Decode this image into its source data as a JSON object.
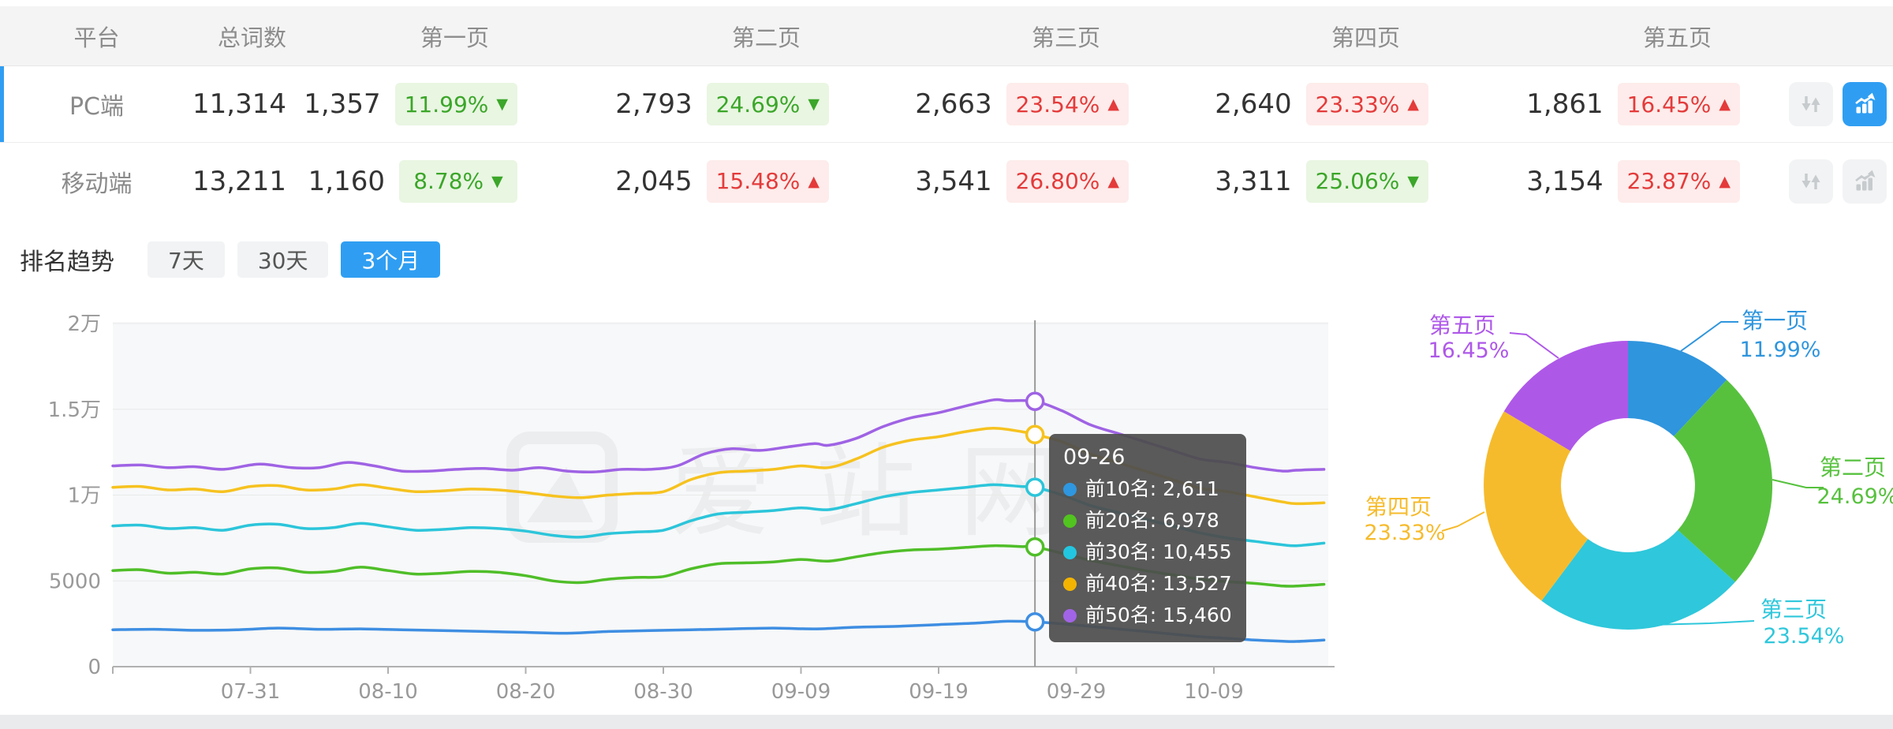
{
  "table": {
    "headers": {
      "platform": "平台",
      "total": "总词数",
      "page1": "第一页",
      "page2": "第二页",
      "page3": "第三页",
      "page4": "第四页",
      "page5": "第五页"
    },
    "rows": [
      {
        "platform": "PC端",
        "total": "11,314",
        "active": true,
        "chart_button_active": true,
        "pages": [
          {
            "count": "1,357",
            "pct": "11.99%",
            "arrow": "▼",
            "state": "down"
          },
          {
            "count": "2,793",
            "pct": "24.69%",
            "arrow": "▼",
            "state": "down"
          },
          {
            "count": "2,663",
            "pct": "23.54%",
            "arrow": "▲",
            "state": "up"
          },
          {
            "count": "2,640",
            "pct": "23.33%",
            "arrow": "▲",
            "state": "up"
          },
          {
            "count": "1,861",
            "pct": "16.45%",
            "arrow": "▲",
            "state": "up"
          }
        ]
      },
      {
        "platform": "移动端",
        "total": "13,211",
        "active": false,
        "chart_button_active": false,
        "pages": [
          {
            "count": "1,160",
            "pct": "8.78%",
            "arrow": "▼",
            "state": "down"
          },
          {
            "count": "2,045",
            "pct": "15.48%",
            "arrow": "▲",
            "state": "up"
          },
          {
            "count": "3,541",
            "pct": "26.80%",
            "arrow": "▲",
            "state": "up"
          },
          {
            "count": "3,311",
            "pct": "25.06%",
            "arrow": "▼",
            "state": "down"
          },
          {
            "count": "3,154",
            "pct": "23.87%",
            "arrow": "▲",
            "state": "up"
          }
        ]
      }
    ]
  },
  "trend": {
    "title": "排名趋势",
    "tabs": [
      {
        "label": "7天",
        "active": false
      },
      {
        "label": "30天",
        "active": false
      },
      {
        "label": "3个月",
        "active": true
      }
    ]
  },
  "watermark": "爱站网",
  "tooltip": {
    "title": "09-26",
    "items": [
      {
        "label": "前10名",
        "value": "2,611",
        "color": "#2e97e0"
      },
      {
        "label": "前20名",
        "value": "6,978",
        "color": "#52c41f"
      },
      {
        "label": "前30名",
        "value": "10,455",
        "color": "#23c6e0"
      },
      {
        "label": "前40名",
        "value": "13,527",
        "color": "#f2b400"
      },
      {
        "label": "前50名",
        "value": "15,460",
        "color": "#a164e6"
      }
    ]
  },
  "colors": {
    "accent_blue": "#2f9ef2",
    "badge_green": "#3ba629",
    "badge_red": "#e43b3b",
    "axis_text": "#999999",
    "crosshair": "#999999"
  },
  "chart_data": [
    {
      "type": "line",
      "title": "排名趋势 3个月",
      "xlabel": "",
      "ylabel": "",
      "x_ticks": [
        "07-31",
        "08-10",
        "08-20",
        "08-30",
        "09-09",
        "09-19",
        "09-29",
        "10-09"
      ],
      "x_tick_days": [
        10,
        20,
        30,
        40,
        50,
        60,
        70,
        80
      ],
      "y_ticks": [
        "0",
        "5000",
        "1万",
        "1.5万",
        "2万"
      ],
      "y_tick_values": [
        0,
        5000,
        10000,
        15000,
        20000
      ],
      "ylim": [
        0,
        20000
      ],
      "grid": true,
      "highlight": {
        "date": "09-26",
        "day": 67,
        "values": [
          2611,
          6978,
          10455,
          13527,
          15460
        ]
      },
      "series": [
        {
          "name": "前10名",
          "color": "#3e8ee2",
          "points": [
            [
              0,
              2150
            ],
            [
              3,
              2180
            ],
            [
              6,
              2120
            ],
            [
              9,
              2150
            ],
            [
              12,
              2250
            ],
            [
              15,
              2180
            ],
            [
              18,
              2200
            ],
            [
              21,
              2150
            ],
            [
              24,
              2100
            ],
            [
              27,
              2050
            ],
            [
              30,
              2000
            ],
            [
              33,
              1950
            ],
            [
              36,
              2050
            ],
            [
              39,
              2100
            ],
            [
              42,
              2150
            ],
            [
              45,
              2200
            ],
            [
              48,
              2250
            ],
            [
              51,
              2200
            ],
            [
              54,
              2300
            ],
            [
              57,
              2350
            ],
            [
              60,
              2450
            ],
            [
              63,
              2550
            ],
            [
              65,
              2650
            ],
            [
              67,
              2611
            ],
            [
              69,
              2500
            ],
            [
              71,
              2350
            ],
            [
              73,
              2200
            ],
            [
              75,
              2050
            ],
            [
              77,
              1900
            ],
            [
              79,
              1750
            ],
            [
              81,
              1650
            ],
            [
              83,
              1550
            ],
            [
              85,
              1480
            ],
            [
              86,
              1470
            ],
            [
              88,
              1550
            ]
          ]
        },
        {
          "name": "前20名",
          "color": "#4fbe28",
          "points": [
            [
              0,
              5600
            ],
            [
              2,
              5650
            ],
            [
              4,
              5450
            ],
            [
              6,
              5500
            ],
            [
              8,
              5400
            ],
            [
              10,
              5700
            ],
            [
              12,
              5750
            ],
            [
              14,
              5500
            ],
            [
              16,
              5550
            ],
            [
              18,
              5800
            ],
            [
              20,
              5600
            ],
            [
              22,
              5400
            ],
            [
              24,
              5450
            ],
            [
              26,
              5550
            ],
            [
              28,
              5500
            ],
            [
              30,
              5300
            ],
            [
              32,
              5000
            ],
            [
              34,
              4900
            ],
            [
              36,
              5100
            ],
            [
              38,
              5200
            ],
            [
              40,
              5250
            ],
            [
              42,
              5700
            ],
            [
              44,
              6000
            ],
            [
              46,
              6050
            ],
            [
              48,
              6100
            ],
            [
              50,
              6250
            ],
            [
              52,
              6150
            ],
            [
              54,
              6400
            ],
            [
              56,
              6650
            ],
            [
              58,
              6800
            ],
            [
              60,
              6850
            ],
            [
              62,
              6950
            ],
            [
              64,
              7050
            ],
            [
              66,
              7000
            ],
            [
              67,
              6978
            ],
            [
              69,
              6600
            ],
            [
              71,
              6200
            ],
            [
              73,
              5900
            ],
            [
              75,
              5600
            ],
            [
              77,
              5350
            ],
            [
              79,
              5100
            ],
            [
              81,
              4950
            ],
            [
              83,
              4850
            ],
            [
              85,
              4700
            ],
            [
              86,
              4700
            ],
            [
              88,
              4800
            ]
          ]
        },
        {
          "name": "前30名",
          "color": "#2cc5da",
          "points": [
            [
              0,
              8200
            ],
            [
              2,
              8250
            ],
            [
              4,
              8050
            ],
            [
              6,
              8100
            ],
            [
              8,
              7950
            ],
            [
              10,
              8250
            ],
            [
              12,
              8300
            ],
            [
              14,
              8050
            ],
            [
              16,
              8100
            ],
            [
              18,
              8350
            ],
            [
              20,
              8150
            ],
            [
              22,
              7950
            ],
            [
              24,
              8000
            ],
            [
              26,
              8100
            ],
            [
              28,
              8050
            ],
            [
              30,
              7900
            ],
            [
              32,
              7650
            ],
            [
              34,
              7550
            ],
            [
              36,
              7750
            ],
            [
              38,
              7850
            ],
            [
              40,
              7950
            ],
            [
              42,
              8500
            ],
            [
              44,
              8900
            ],
            [
              46,
              9000
            ],
            [
              48,
              9100
            ],
            [
              50,
              9250
            ],
            [
              52,
              9150
            ],
            [
              54,
              9500
            ],
            [
              56,
              9900
            ],
            [
              58,
              10150
            ],
            [
              60,
              10300
            ],
            [
              62,
              10450
            ],
            [
              64,
              10600
            ],
            [
              66,
              10500
            ],
            [
              67,
              10455
            ],
            [
              69,
              10000
            ],
            [
              71,
              9400
            ],
            [
              73,
              9000
            ],
            [
              75,
              8600
            ],
            [
              77,
              8200
            ],
            [
              79,
              7800
            ],
            [
              81,
              7500
            ],
            [
              83,
              7300
            ],
            [
              85,
              7100
            ],
            [
              86,
              7050
            ],
            [
              88,
              7200
            ]
          ]
        },
        {
          "name": "前40名",
          "color": "#f6c21f",
          "points": [
            [
              0,
              10450
            ],
            [
              2,
              10500
            ],
            [
              4,
              10300
            ],
            [
              6,
              10350
            ],
            [
              8,
              10200
            ],
            [
              10,
              10500
            ],
            [
              12,
              10550
            ],
            [
              14,
              10300
            ],
            [
              16,
              10350
            ],
            [
              18,
              10600
            ],
            [
              20,
              10400
            ],
            [
              22,
              10200
            ],
            [
              24,
              10250
            ],
            [
              26,
              10350
            ],
            [
              28,
              10300
            ],
            [
              30,
              10150
            ],
            [
              32,
              9950
            ],
            [
              34,
              9850
            ],
            [
              36,
              10000
            ],
            [
              38,
              10100
            ],
            [
              40,
              10200
            ],
            [
              42,
              10900
            ],
            [
              44,
              11300
            ],
            [
              46,
              11400
            ],
            [
              48,
              11500
            ],
            [
              50,
              11700
            ],
            [
              52,
              11600
            ],
            [
              54,
              12100
            ],
            [
              56,
              12800
            ],
            [
              58,
              13200
            ],
            [
              60,
              13400
            ],
            [
              62,
              13700
            ],
            [
              64,
              13900
            ],
            [
              66,
              13700
            ],
            [
              67,
              13527
            ],
            [
              69,
              13100
            ],
            [
              71,
              12400
            ],
            [
              73,
              11900
            ],
            [
              75,
              11400
            ],
            [
              77,
              10900
            ],
            [
              79,
              10400
            ],
            [
              81,
              10200
            ],
            [
              83,
              9900
            ],
            [
              85,
              9600
            ],
            [
              86,
              9500
            ],
            [
              88,
              9550
            ]
          ]
        },
        {
          "name": "前50名",
          "color": "#9f63e4",
          "points": [
            [
              0,
              11700
            ],
            [
              2,
              11750
            ],
            [
              4,
              11600
            ],
            [
              6,
              11650
            ],
            [
              8,
              11500
            ],
            [
              10,
              11750
            ],
            [
              11,
              11800
            ],
            [
              13,
              11600
            ],
            [
              15,
              11600
            ],
            [
              17,
              11900
            ],
            [
              19,
              11700
            ],
            [
              21,
              11400
            ],
            [
              23,
              11400
            ],
            [
              25,
              11500
            ],
            [
              27,
              11550
            ],
            [
              29,
              11450
            ],
            [
              31,
              11600
            ],
            [
              33,
              11400
            ],
            [
              35,
              11350
            ],
            [
              37,
              11500
            ],
            [
              39,
              11500
            ],
            [
              41,
              11700
            ],
            [
              43,
              12400
            ],
            [
              45,
              12700
            ],
            [
              47,
              12600
            ],
            [
              49,
              12800
            ],
            [
              51,
              13000
            ],
            [
              52,
              12900
            ],
            [
              54,
              13300
            ],
            [
              56,
              14000
            ],
            [
              58,
              14500
            ],
            [
              60,
              14800
            ],
            [
              62,
              15200
            ],
            [
              64,
              15550
            ],
            [
              65,
              15500
            ],
            [
              67,
              15460
            ],
            [
              69,
              14900
            ],
            [
              71,
              14100
            ],
            [
              73,
              13600
            ],
            [
              75,
              13100
            ],
            [
              77,
              12600
            ],
            [
              79,
              12100
            ],
            [
              81,
              11900
            ],
            [
              83,
              11600
            ],
            [
              85,
              11400
            ],
            [
              86,
              11450
            ],
            [
              88,
              11500
            ]
          ]
        }
      ]
    },
    {
      "type": "pie",
      "donut": true,
      "slices": [
        {
          "label": "第一页",
          "value_pct": 11.99,
          "pct_label": "11.99%",
          "color": "#2f95dd"
        },
        {
          "label": "第二页",
          "value_pct": 24.69,
          "pct_label": "24.69%",
          "color": "#57c13e"
        },
        {
          "label": "第三页",
          "value_pct": 23.54,
          "pct_label": "23.54%",
          "color": "#2fc7db"
        },
        {
          "label": "第四页",
          "value_pct": 23.33,
          "pct_label": "23.33%",
          "color": "#f6bb2c"
        },
        {
          "label": "第五页",
          "value_pct": 16.45,
          "pct_label": "16.45%",
          "color": "#ae58e8"
        }
      ]
    }
  ]
}
